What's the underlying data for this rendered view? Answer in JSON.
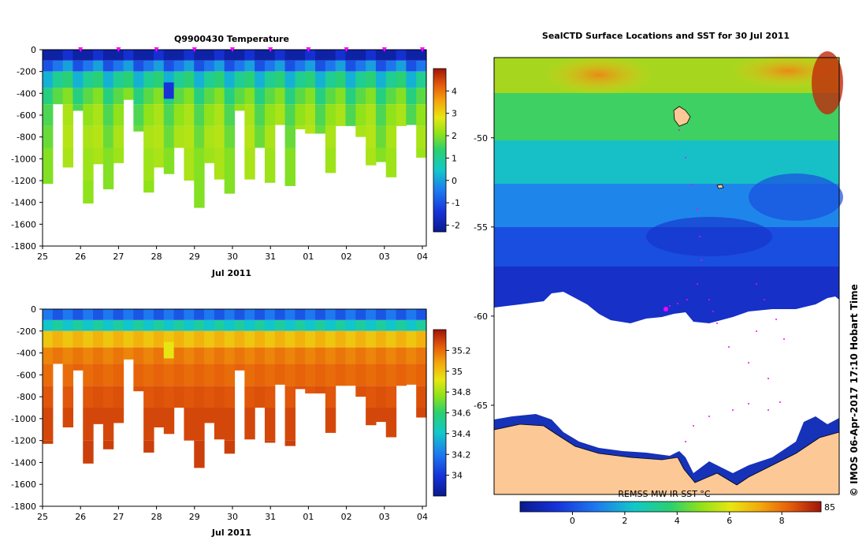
{
  "chart_data": [
    {
      "type": "heatmap",
      "title": "Q9900430  Temperature",
      "xlabel": "Jul 2011",
      "x_tick_labels": [
        "25",
        "26",
        "27",
        "28",
        "29",
        "30",
        "31",
        "01",
        "02",
        "03",
        "04"
      ],
      "y_tick_labels": [
        "0",
        "-200",
        "-400",
        "-600",
        "-800",
        "-1000",
        "-1200",
        "-1400",
        "-1600",
        "-1800"
      ],
      "ylim": [
        -1800,
        0
      ],
      "colorbar": {
        "labels": [
          "4",
          "3",
          "2",
          "1",
          "0",
          "-1",
          "-2"
        ],
        "range": [
          -2.3,
          5
        ]
      },
      "profile_depths": [
        -1230,
        -500,
        -1080,
        -560,
        -1410,
        -1050,
        -1280,
        -1040,
        -460,
        -750,
        -1310,
        -1080,
        -1140,
        -900,
        -1200,
        -1450,
        -1040,
        -1190,
        -1320,
        -560,
        -1190,
        -900,
        -1220,
        -690,
        -1250,
        -730,
        -770,
        -770,
        -1130,
        -700,
        -700,
        -800,
        -1060,
        -1030,
        -1170,
        -700,
        -690,
        -990
      ],
      "markers": [
        "26",
        "27",
        "28",
        "29",
        "30",
        "31",
        "01",
        "02",
        "03",
        "04"
      ],
      "color_values": [
        [
          -2.0,
          -1.0,
          0.2,
          1.2,
          1.6,
          1.8,
          2.0,
          2.0
        ],
        [
          -2.0,
          -0.5,
          1.0,
          1.7,
          2.1,
          2.3,
          2.2,
          2.1
        ],
        [
          -1.5,
          0.0,
          1.3,
          2.0,
          2.3,
          2.4,
          2.3,
          2.2
        ]
      ]
    },
    {
      "type": "heatmap",
      "title": "",
      "xlabel": "Jul 2011",
      "x_tick_labels": [
        "25",
        "26",
        "27",
        "28",
        "29",
        "30",
        "31",
        "01",
        "02",
        "03",
        "04"
      ],
      "y_tick_labels": [
        "0",
        "-200",
        "-400",
        "-600",
        "-800",
        "-1000",
        "-1200",
        "-1400",
        "-1600",
        "-1800"
      ],
      "ylim": [
        -1800,
        0
      ],
      "colorbar": {
        "labels": [
          "35.2",
          "35",
          "34.8",
          "34.6",
          "34.4",
          "34.2",
          "34"
        ],
        "range": [
          33.8,
          35.4
        ]
      },
      "color_values": [
        [
          34.2,
          34.4,
          35.0,
          35.15,
          35.2,
          35.25,
          35.28,
          35.3
        ],
        [
          34.1,
          34.5,
          35.05,
          35.18,
          35.22,
          35.26,
          35.28,
          35.3
        ]
      ]
    },
    {
      "type": "heatmap",
      "title": "SealCTD Surface Locations and SST for 30 Jul 2011",
      "y_tick_labels": [
        "-50",
        "-55",
        "-60",
        "-65"
      ],
      "ylim": [
        -70,
        -45.5
      ],
      "colorbar": {
        "title": "REMSS MW-IR SST °C",
        "labels": [
          "0",
          "2",
          "4",
          "6",
          "8"
        ],
        "right_label": "85",
        "range": [
          -2,
          9.5
        ]
      }
    }
  ],
  "credit": "© IMOS 06-Apr-2017 17:10 Hobart Time"
}
